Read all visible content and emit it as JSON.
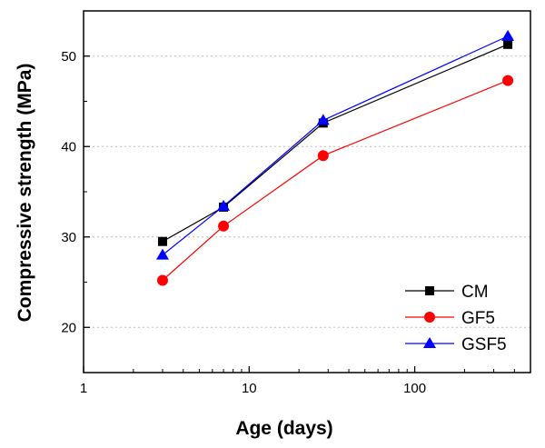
{
  "chart_data": {
    "type": "line",
    "xscale": "log",
    "xlabel": "Age (days)",
    "ylabel": "Compressive strength (MPa)",
    "xlim": [
      1,
      500
    ],
    "ylim": [
      15,
      55
    ],
    "xticks": [
      1,
      10,
      100
    ],
    "xtick_labels": [
      "1",
      "10",
      "100"
    ],
    "yticks": [
      20,
      30,
      40,
      50
    ],
    "ytick_labels": [
      "20",
      "30",
      "40",
      "50"
    ],
    "grid": "horizontal dotted",
    "legend_position": "bottom-right",
    "x": [
      3,
      7,
      28,
      365
    ],
    "series": [
      {
        "name": "CM",
        "values": [
          29.5,
          33.3,
          42.6,
          51.3
        ],
        "color": "#000000",
        "marker": "square"
      },
      {
        "name": "GF5",
        "values": [
          25.2,
          31.2,
          39.0,
          47.3
        ],
        "color": "#ff0000",
        "marker": "circle"
      },
      {
        "name": "GSF5",
        "values": [
          28.0,
          33.4,
          42.9,
          52.2
        ],
        "color": "#0000ff",
        "marker": "triangle"
      }
    ]
  }
}
